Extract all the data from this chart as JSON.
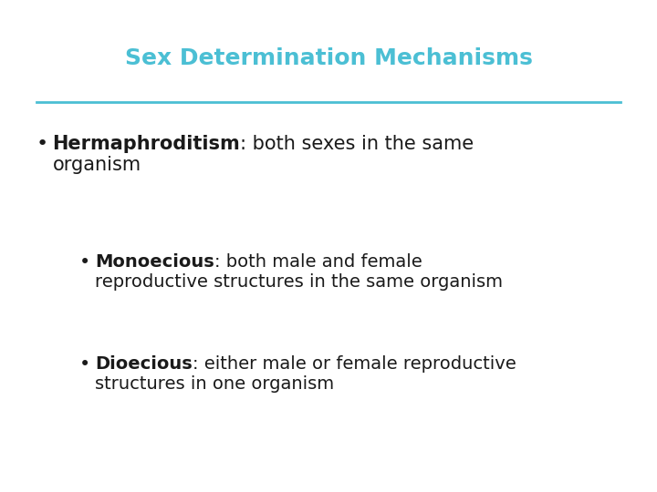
{
  "title": "Sex Determination Mechanisms",
  "title_color": "#4BBFD4",
  "line_color": "#4BBFD4",
  "background_color": "#ffffff",
  "text_color": "#1a1a1a",
  "bullet1_bold": "Hermaphroditism",
  "bullet1_colon": ": both sexes in the same",
  "bullet1_cont": "organism",
  "bullet2_bold": "Monoecious",
  "bullet2_colon": ": both male and female",
  "bullet2_cont": "reproductive structures in the same organism",
  "bullet3_bold": "Dioecious",
  "bullet3_colon": ": either male or female reproductive",
  "bullet3_cont": "structures in one organism",
  "title_fontsize": 18,
  "bullet1_fontsize": 15,
  "bullet2_fontsize": 14,
  "bullet3_fontsize": 14,
  "fig_width": 7.2,
  "fig_height": 5.4,
  "dpi": 100
}
